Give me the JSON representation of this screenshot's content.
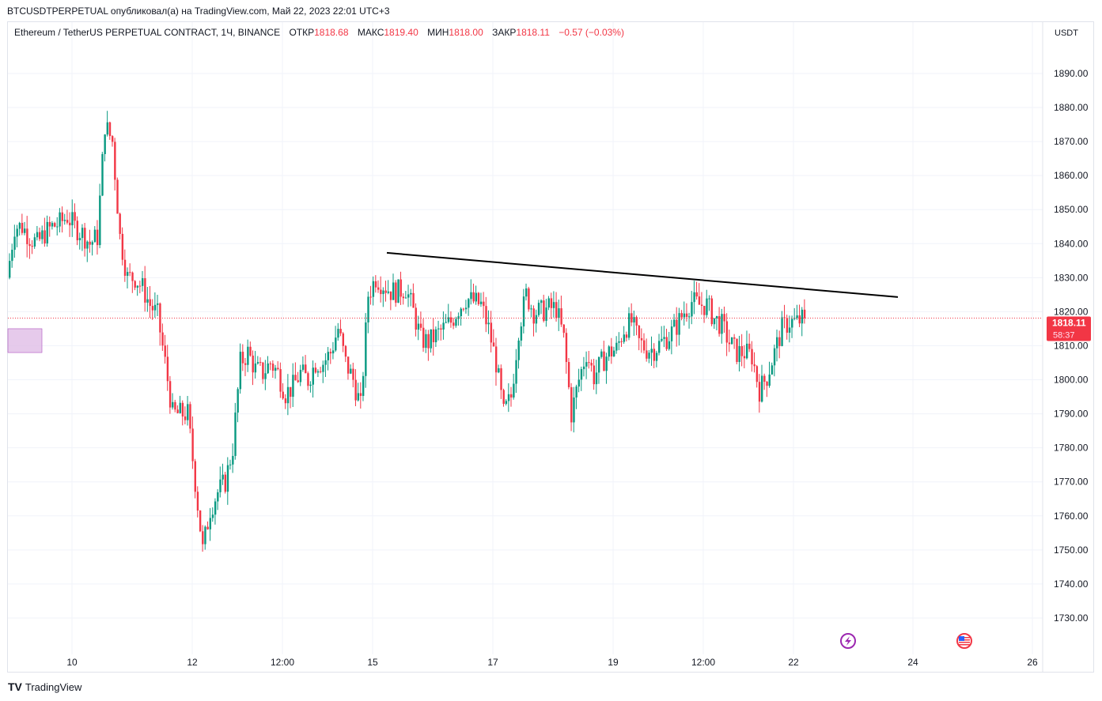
{
  "publish_line": "BTCUSDTPERPETUAL опубликовал(а) на TradingView.com, Май 22, 2023 22:01 UTC+3",
  "legend": {
    "symbol": "Ethereum / TetherUS PERPETUAL CONTRACT, 1Ч, BINANCE",
    "open_label": "ОТКР",
    "open": "1818.68",
    "high_label": "МАКС",
    "high": "1819.40",
    "low_label": "МИН",
    "low": "1818.00",
    "close_label": "ЗАКР",
    "close": "1818.11",
    "change": "−0.57 (−0.03%)"
  },
  "logo_text": "TradingView",
  "colors": {
    "up": "#089981",
    "down": "#f23645",
    "grid": "#f0f3fa",
    "event": "#9c27b0"
  },
  "chart_data": {
    "type": "candlestick",
    "currency": "USDT",
    "ylim": [
      1722,
      1905
    ],
    "y_ticks": [
      1730,
      1740,
      1750,
      1760,
      1770,
      1780,
      1790,
      1800,
      1810,
      1820,
      1830,
      1840,
      1850,
      1860,
      1870,
      1880,
      1890
    ],
    "y_tick_labels": [
      "1730.00",
      "1740.00",
      "1750.00",
      "1760.00",
      "1770.00",
      "1780.00",
      "1790.00",
      "1800.00",
      "1810.00",
      "1820.00",
      "1830.00",
      "1840.00",
      "1850.00",
      "1860.00",
      "1870.00",
      "1880.00",
      "1890.00"
    ],
    "x_tick_labels": [
      "10",
      "12",
      "12:00",
      "15",
      "17",
      "19",
      "12:00",
      "22",
      "24",
      "26"
    ],
    "last_price": "1818.11",
    "countdown": "58:37",
    "interval": "1H",
    "approx_closes_every_3h": [
      1830,
      1845,
      1845,
      1842,
      1840,
      1843,
      1845,
      1846,
      1848,
      1845,
      1843,
      1840,
      1842,
      1875,
      1870,
      1842,
      1830,
      1830,
      1827,
      1822,
      1819,
      1805,
      1790,
      1790,
      1790,
      1770,
      1750,
      1762,
      1767,
      1770,
      1780,
      1805,
      1808,
      1803,
      1802,
      1805,
      1802,
      1796,
      1798,
      1802,
      1800,
      1805,
      1805,
      1808,
      1815,
      1805,
      1800,
      1792,
      1825,
      1830,
      1828,
      1826,
      1826,
      1827,
      1820,
      1812,
      1811,
      1813,
      1815,
      1817,
      1821,
      1824,
      1823,
      1822,
      1815,
      1805,
      1790,
      1795,
      1815,
      1825,
      1820,
      1820,
      1821,
      1821,
      1812,
      1790,
      1800,
      1808,
      1801,
      1805,
      1808,
      1809,
      1815,
      1817,
      1811,
      1809,
      1809,
      1811,
      1813,
      1816,
      1820,
      1823,
      1822,
      1822,
      1818,
      1816,
      1811,
      1808,
      1808,
      1807,
      1797,
      1801,
      1808,
      1815,
      1817,
      1817,
      1818.11
    ],
    "trendline": {
      "from_price": 1837.3,
      "to_price": 1824.3
    },
    "range_box": {
      "from_price": 1815,
      "to_price": 1808
    }
  }
}
